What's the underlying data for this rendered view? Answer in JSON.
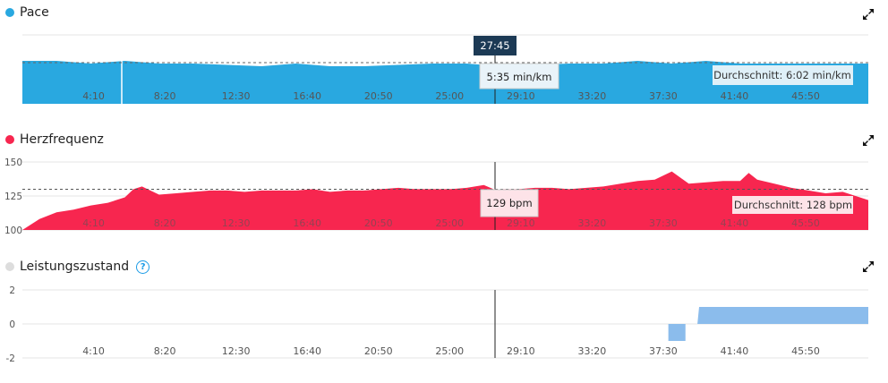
{
  "colors": {
    "pace": "#29a8e0",
    "heart": "#f7264f",
    "perf": "#8bbcec",
    "perf_dot": "#dddddd",
    "cursor": "#222222",
    "tooltip_dark": "#1c3a55"
  },
  "x_ticks": [
    "4:10",
    "8:20",
    "12:30",
    "16:40",
    "20:50",
    "25:00",
    "29:10",
    "33:20",
    "37:30",
    "41:40",
    "45:50"
  ],
  "cursor_time": "27:45",
  "charts": {
    "pace": {
      "title": "Pace",
      "tooltip": "5:35 min/km",
      "average_label": "Durchschnitt: 6:02 min/km",
      "icon": "expand-icon"
    },
    "heart": {
      "title": "Herzfrequenz",
      "tooltip": "129 bpm",
      "average_label": "Durchschnitt: 128 bpm",
      "icon": "expand-icon"
    },
    "perf": {
      "title": "Leistungszustand",
      "help_icon": "?",
      "icon": "expand-icon"
    }
  },
  "chart_data": [
    {
      "type": "area",
      "title": "Pace",
      "unit": "min/km",
      "x_range_min": [
        0,
        49.5
      ],
      "x_tick_labels": [
        "4:10",
        "8:20",
        "12:30",
        "16:40",
        "20:50",
        "25:00",
        "29:10",
        "33:20",
        "37:30",
        "41:40",
        "45:50"
      ],
      "average": "6:02",
      "x": [
        0,
        2,
        4,
        6,
        8,
        10,
        12,
        14,
        16,
        18,
        20,
        22,
        24,
        26,
        28,
        30,
        32,
        34,
        36,
        38,
        40,
        42,
        44,
        46,
        48,
        49.5
      ],
      "values": [
        5.9,
        5.9,
        6.0,
        5.9,
        6.0,
        6.0,
        6.05,
        6.1,
        6.0,
        6.1,
        6.1,
        6.05,
        6.0,
        6.0,
        6.1,
        6.05,
        6.0,
        6.0,
        5.9,
        6.0,
        5.9,
        6.0,
        6.0,
        6.0,
        6.0,
        6.0
      ]
    },
    {
      "type": "area",
      "title": "Herzfrequenz",
      "unit": "bpm",
      "ylim": [
        100,
        150
      ],
      "y_ticks": [
        100,
        125,
        150
      ],
      "average": 128,
      "x": [
        0,
        1,
        2,
        3,
        4,
        5,
        6,
        6.5,
        7,
        8,
        9,
        10,
        11,
        12,
        13,
        14,
        15,
        16,
        17,
        18,
        19,
        20,
        21,
        22,
        23,
        24,
        25,
        26,
        27,
        27.75,
        28,
        29,
        30,
        31,
        32,
        33,
        34,
        35,
        36,
        37,
        38,
        39,
        40,
        41,
        42,
        42.5,
        43,
        44,
        45,
        46,
        47,
        48,
        49,
        49.5
      ],
      "values": [
        100,
        108,
        113,
        115,
        118,
        120,
        124,
        130,
        132,
        126,
        127,
        128,
        129,
        129,
        128,
        129,
        129,
        129,
        130,
        128,
        129,
        129,
        130,
        131,
        130,
        130,
        130,
        131,
        133,
        129,
        130,
        130,
        131,
        131,
        130,
        131,
        132,
        134,
        136,
        137,
        143,
        134,
        135,
        136,
        136,
        142,
        137,
        134,
        131,
        129,
        127,
        128,
        124,
        122
      ]
    },
    {
      "type": "area",
      "title": "Leistungszustand",
      "ylim": [
        -2,
        2
      ],
      "y_ticks": [
        -2,
        0,
        2
      ],
      "x": [
        37.8,
        38.8,
        38.9,
        39.5,
        39.6,
        49.5
      ],
      "values": [
        -1,
        -1,
        0,
        0,
        1,
        1
      ]
    }
  ]
}
